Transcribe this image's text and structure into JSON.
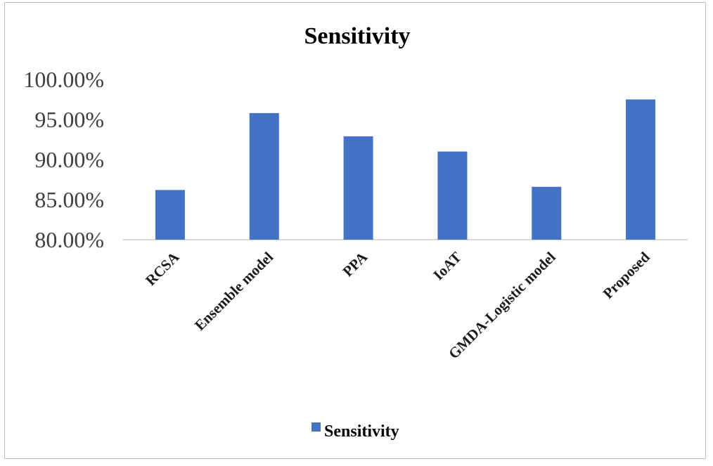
{
  "chart_data": {
    "type": "bar",
    "title": "Sensitivity",
    "categories": [
      "RCSA",
      "Ensemble model",
      "PPA",
      "IoAT",
      "GMDA-Logistic model",
      "Proposed"
    ],
    "series": [
      {
        "name": "Sensitivity",
        "values": [
          86.2,
          95.8,
          92.9,
          91.0,
          86.6,
          97.5
        ]
      }
    ],
    "yticks": [
      "80.00%",
      "85.00%",
      "90.00%",
      "95.00%",
      "100.00%"
    ],
    "ylim": [
      80,
      100
    ],
    "xlabel": "",
    "ylabel": "",
    "grid": false,
    "legend_position": "bottom",
    "colors": {
      "bar": "#4472c4",
      "axis": "#d9d9d9",
      "frame": "#bfbfbf"
    }
  }
}
